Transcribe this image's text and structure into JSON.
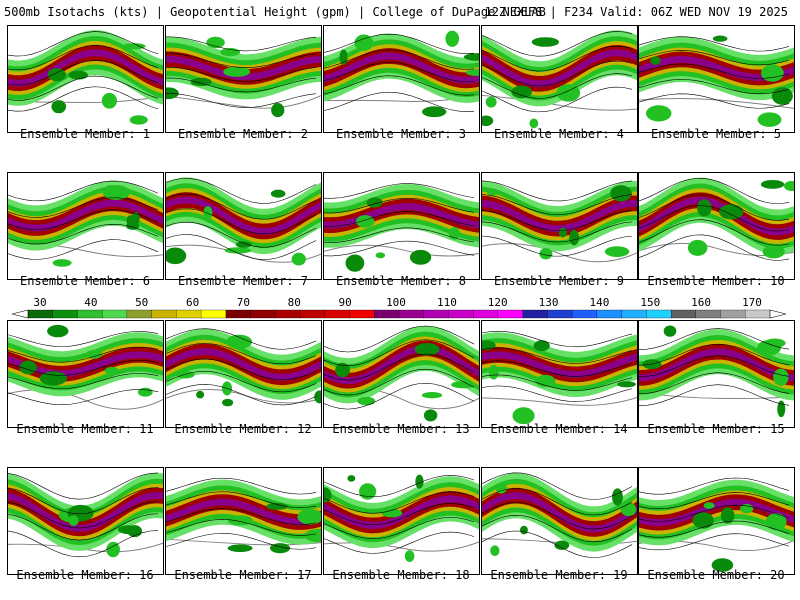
{
  "header": {
    "left": "500mb Isotachs (kts) | Geopotential Height (gpm) | College of DuPage NEXLAB",
    "right": "12Z GEFS | F234 Valid: 06Z WED NOV 19 2025"
  },
  "members": [
    "Ensemble Member: 1",
    "Ensemble Member: 2",
    "Ensemble Member: 3",
    "Ensemble Member: 4",
    "Ensemble Member: 5",
    "Ensemble Member: 6",
    "Ensemble Member: 7",
    "Ensemble Member: 8",
    "Ensemble Member: 9",
    "Ensemble Member: 10",
    "Ensemble Member: 11",
    "Ensemble Member: 12",
    "Ensemble Member: 13",
    "Ensemble Member: 14",
    "Ensemble Member: 15",
    "Ensemble Member: 16",
    "Ensemble Member: 17",
    "Ensemble Member: 18",
    "Ensemble Member: 19",
    "Ensemble Member: 20"
  ],
  "colorbar": {
    "ticks": [
      "30",
      "40",
      "50",
      "60",
      "70",
      "80",
      "90",
      "100",
      "110",
      "120",
      "130",
      "140",
      "150",
      "160",
      "170"
    ],
    "colors": [
      "#0a6a0a",
      "#0f8f0f",
      "#2fbf2f",
      "#4fd84f",
      "#8fa02a",
      "#c8b400",
      "#e0d000",
      "#ffff00",
      "#7a0000",
      "#900000",
      "#a80000",
      "#c00000",
      "#d80000",
      "#f00000",
      "#7a0070",
      "#9a0090",
      "#b000b0",
      "#c800c8",
      "#e000e0",
      "#ff00ff",
      "#2020a0",
      "#2040d0",
      "#2060ff",
      "#2090ff",
      "#20b0ff",
      "#20d0ff",
      "#606060",
      "#808080",
      "#a0a0a0",
      "#c8c8c8"
    ]
  },
  "panel_colors": {
    "green_dark": "#0a8a0a",
    "green": "#22c022",
    "green_light": "#66e066",
    "yellow": "#c8b400",
    "red": "#a00000",
    "purple": "#8a008a",
    "contour": "#000000",
    "coast": "#808080"
  }
}
